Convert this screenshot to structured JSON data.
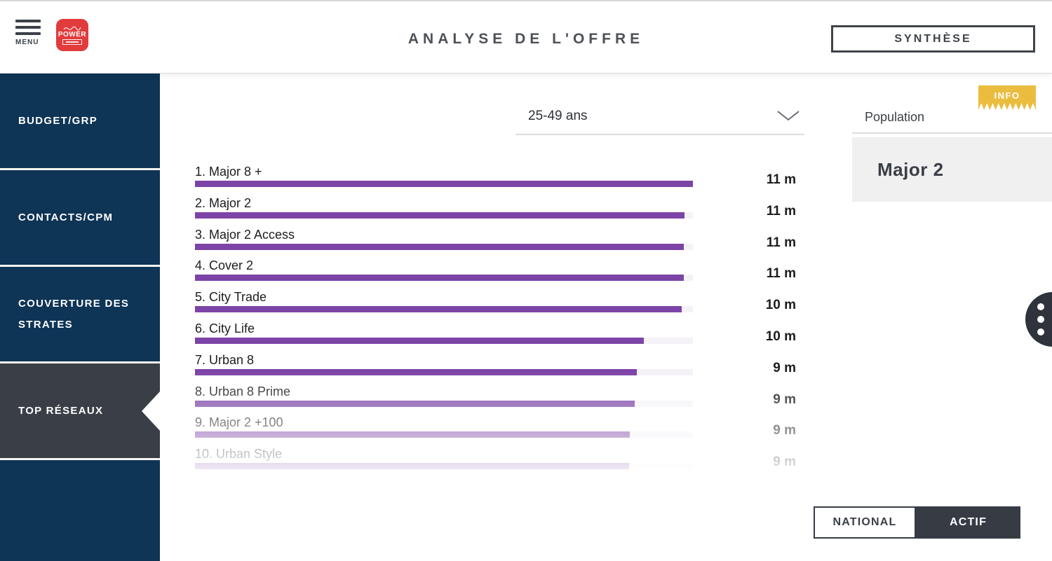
{
  "colors": {
    "accent_purple": "#7d44a7",
    "bar_track": "#f4f2f7",
    "sidebar_navy": "#0e3456",
    "active_charcoal": "#3a3f47",
    "info_yellow": "#eabd3f",
    "logo_red": "#e23b3c"
  },
  "header": {
    "menu_label": "MENU",
    "logo_text": "POWER",
    "title": "ANALYSE DE L'OFFRE",
    "synthese_button": "SYNTHÈSE"
  },
  "sidebar": {
    "items": [
      {
        "label": "BUDGET/GRP",
        "active": false
      },
      {
        "label": "CONTACTS/CPM",
        "active": false
      },
      {
        "label": "COUVERTURE DES STRATES",
        "active": false
      },
      {
        "label": "TOP RÉSEAUX",
        "active": true
      }
    ]
  },
  "content": {
    "age_dropdown": {
      "value": "25-49 ans"
    },
    "population_header": "Population",
    "info_badge": "INFO",
    "selected_network_panel": {
      "title": "Major 2"
    },
    "footer_toggle": {
      "options": [
        {
          "label": "NATIONAL",
          "active": false
        },
        {
          "label": "ACTIF",
          "active": true
        }
      ]
    }
  },
  "chart_data": {
    "type": "bar",
    "orientation": "horizontal",
    "title": "Top réseaux",
    "unit": "m",
    "categories": [
      "1. Major 8 +",
      "2. Major 2",
      "3. Major 2 Access",
      "4. Cover 2",
      "5. City Trade",
      "6. City Life",
      "7. Urban 8",
      "8. Urban 8 Prime",
      "9. Major 2 +100",
      "10. Urban Style"
    ],
    "values": [
      11,
      11,
      11,
      11,
      10,
      10,
      9,
      9,
      9,
      9
    ],
    "value_labels": [
      "11 m",
      "11 m",
      "11 m",
      "11 m",
      "10 m",
      "10 m",
      "9 m",
      "9 m",
      "9 m",
      "9 m"
    ],
    "bar_fractions": [
      1.0,
      0.983,
      0.982,
      0.982,
      0.978,
      0.901,
      0.887,
      0.883,
      0.873,
      0.872
    ],
    "bar_color": "#7d44a7",
    "track_color": "#f4f2f7",
    "legend": "none",
    "grid": false
  }
}
